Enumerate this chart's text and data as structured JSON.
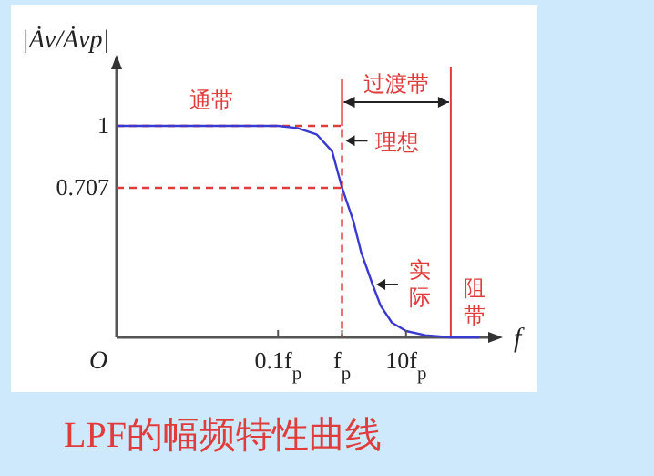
{
  "chart_data": {
    "type": "line",
    "title": "LPF的幅频特性曲线",
    "xlabel": "f",
    "ylabel": "|Ȧv/Ȧvp|",
    "log": "x",
    "xlim": [
      0.0003,
      250
    ],
    "xticks": [
      {
        "value": 0.1,
        "label": "0.1f$_{p}$"
      },
      {
        "value": 1,
        "label": "f$_{p}$"
      },
      {
        "value": 10,
        "label": "10f$_{p}$"
      }
    ],
    "ylim": [
      0,
      1.25
    ],
    "yticks": [
      1,
      0.707
    ],
    "grid": false,
    "series": [
      {
        "color": "#e03c3c",
        "line_style": "dashed",
        "x": [
          0.0003,
          1,
          1
        ],
        "values": [
          1,
          1,
          0
        ]
      },
      {
        "color": "#e03c3c",
        "line_style": "dashed",
        "x": [
          0.0003,
          1
        ],
        "values": [
          0.707,
          0.707
        ]
      },
      {
        "color": "#e03c3c",
        "line_style": "solid",
        "x": [
          1,
          1
        ],
        "values": [
          1,
          1.22
        ]
      },
      {
        "color": "#3a3ad0",
        "line_style": "solid",
        "x": [
          0.0003,
          0.1,
          0.2,
          0.4,
          0.7,
          1,
          1.5,
          2,
          3,
          4,
          6,
          10,
          20,
          50,
          140
        ],
        "values": [
          1,
          1,
          0.99,
          0.96,
          0.88,
          0.707,
          0.55,
          0.4,
          0.25,
          0.15,
          0.07,
          0.03,
          0.01,
          0,
          0
        ]
      }
    ],
    "ref_lines": [
      {
        "axis": "x",
        "value": 50,
        "label": "阻带",
        "color": "#e03c3c",
        "line_style": "solid"
      }
    ],
    "annotations": [
      "O",
      "通带",
      "过渡带",
      {
        "text": "理想",
        "x": 1,
        "y": 0.93
      },
      {
        "text": "实际",
        "x": 3,
        "y": 0.25
      }
    ]
  }
}
